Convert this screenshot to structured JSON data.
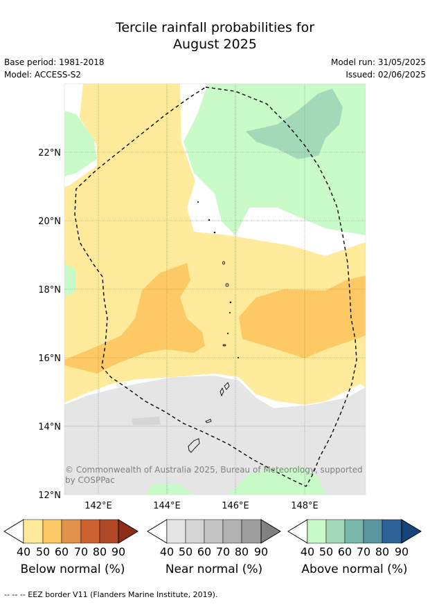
{
  "title_line1": "Tercile rainfall probabilities for",
  "title_line2": "August 2025",
  "base_period": "Base period: 1981-2018",
  "model": "Model: ACCESS-S2",
  "model_run": "Model run: 31/05/2025",
  "issued": "Issued: 02/06/2025",
  "copyright": "© Commonwealth of Australia 2025, Bureau of Meteorology, supported by COSPPac",
  "axes": {
    "lat_labels": [
      "22°N",
      "20°N",
      "18°N",
      "16°N",
      "14°N",
      "12°N"
    ],
    "lon_labels": [
      "142°E",
      "144°E",
      "146°E",
      "148°E"
    ]
  },
  "legend_ticks": [
    "40",
    "50",
    "60",
    "70",
    "80",
    "90"
  ],
  "colorbars": [
    {
      "label": "Below normal (%)",
      "colors": [
        "#ffeb9b",
        "#fdc965",
        "#e0924c",
        "#cd6332",
        "#b04827",
        "#8c2d1a"
      ]
    },
    {
      "label": "Near normal (%)",
      "colors": [
        "#e5e5e5",
        "#d5d5d5",
        "#c4c4c4",
        "#b2b2b2",
        "#9e9e9e",
        "#808080"
      ]
    },
    {
      "label": "Above normal (%)",
      "colors": [
        "#c8fbc8",
        "#a3d8b8",
        "#7ab8ad",
        "#5a96a0",
        "#2e6295",
        "#17457a"
      ]
    }
  ],
  "footnote": "--  --  -- EEZ border V11 (Flanders Marine Institute, 2019)."
}
